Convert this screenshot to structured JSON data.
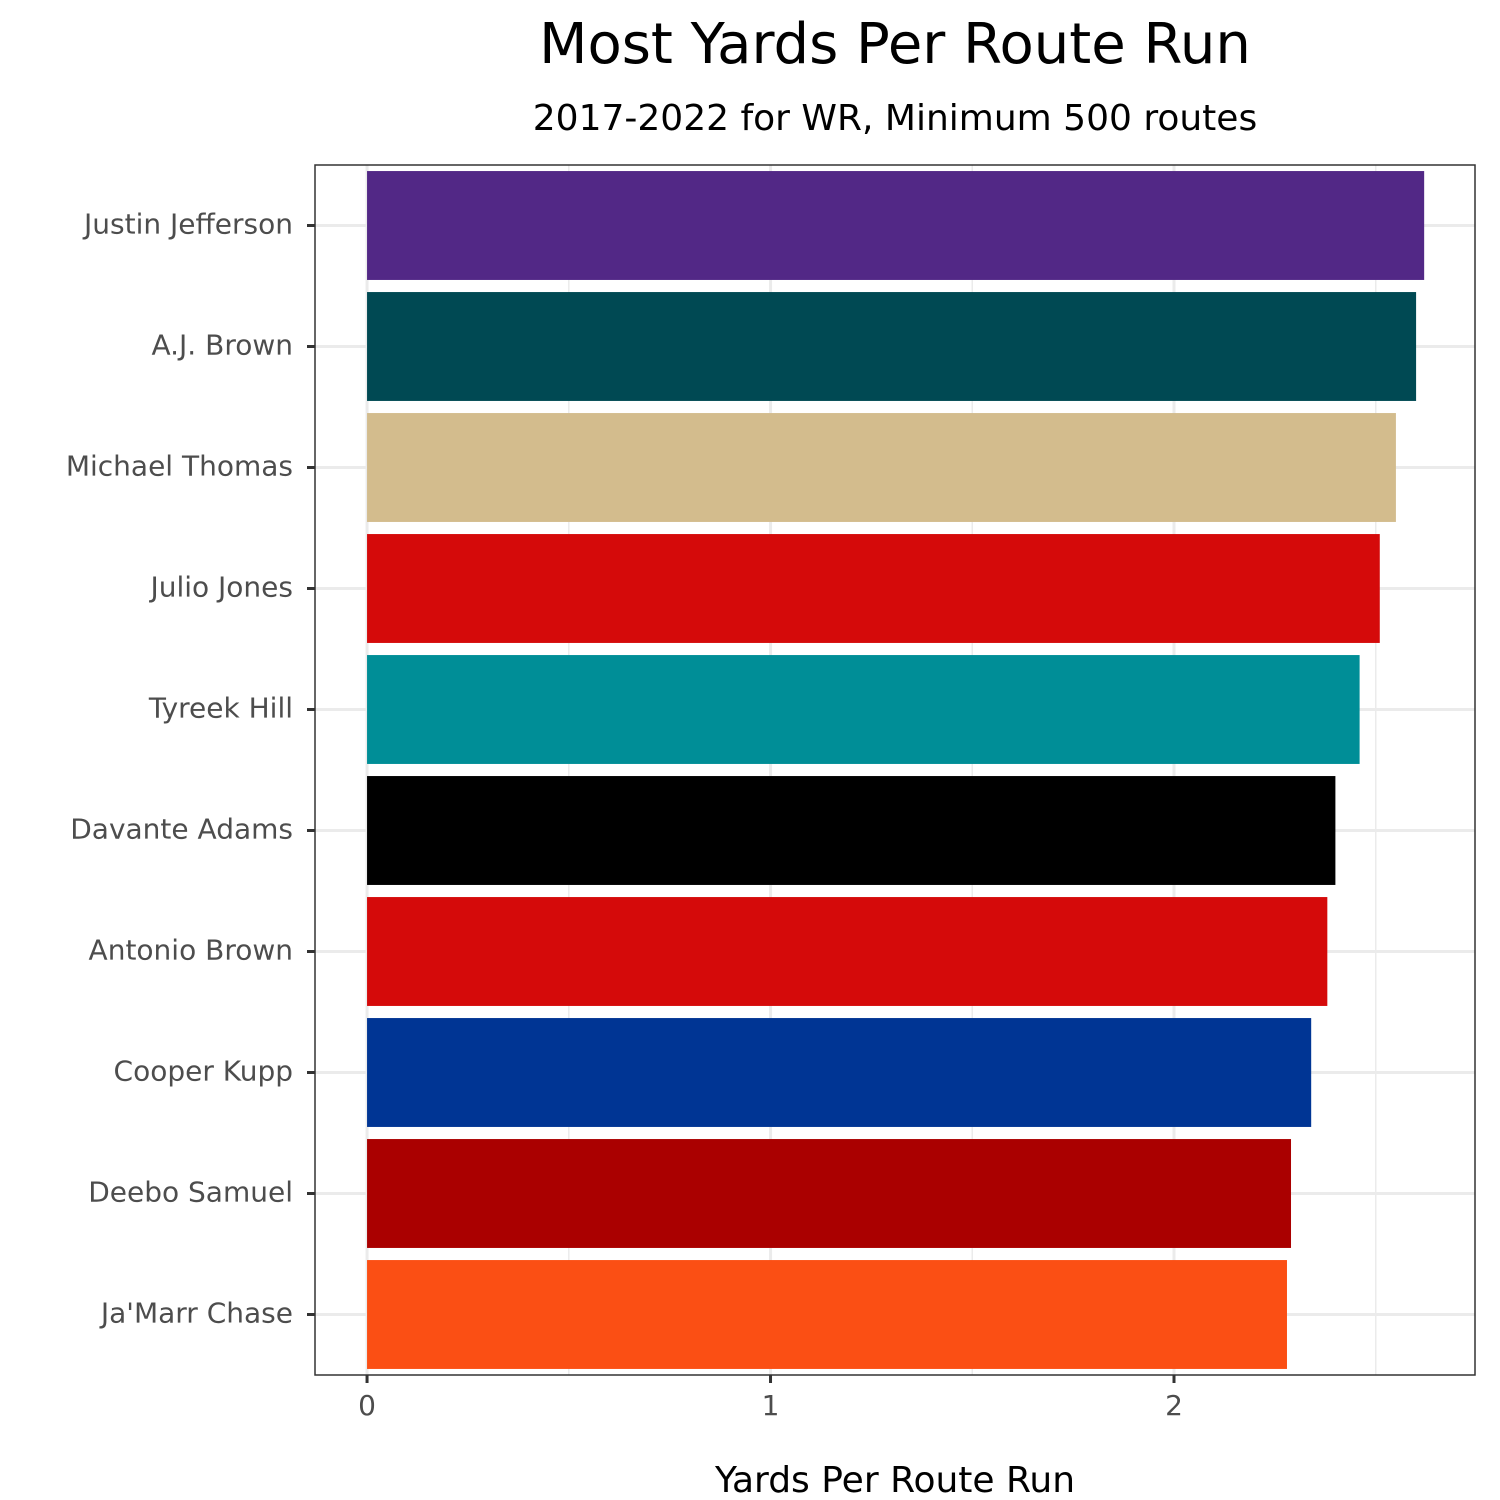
{
  "chart_data": {
    "type": "bar",
    "orientation": "horizontal",
    "title": "Most Yards Per Route Run",
    "subtitle": "2017-2022 for WR, Minimum 500 routes",
    "x_label": "Yards  Per  Route  Run",
    "categories": [
      "Justin Jefferson",
      "A.J. Brown",
      "Michael Thomas",
      "Julio Jones",
      "Tyreek Hill",
      "Davante Adams",
      "Antonio Brown",
      "Cooper Kupp",
      "Deebo Samuel",
      "Ja'Marr Chase"
    ],
    "values": [
      2.62,
      2.6,
      2.55,
      2.51,
      2.46,
      2.4,
      2.38,
      2.34,
      2.29,
      2.28
    ],
    "colors": [
      "#522886",
      "#004953",
      "#d3bc8d",
      "#d50a0a",
      "#008e97",
      "#000000",
      "#d50a0a",
      "#003594",
      "#aa0000",
      "#fb4f14"
    ],
    "xlim": [
      -0.129,
      2.746
    ],
    "xticks": [
      0,
      1,
      2
    ],
    "grid": true
  }
}
